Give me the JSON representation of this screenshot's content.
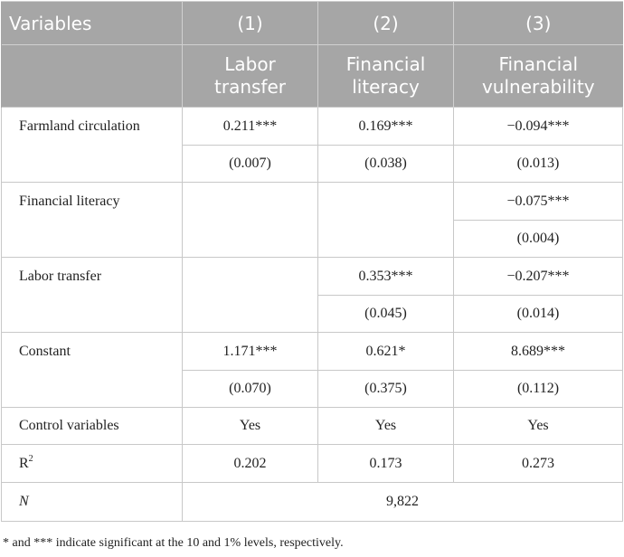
{
  "table": {
    "header_variables": "Variables",
    "columns": [
      {
        "number": "(1)",
        "name_line1": "Labor",
        "name_line2": "transfer"
      },
      {
        "number": "(2)",
        "name_line1": "Financial",
        "name_line2": "literacy"
      },
      {
        "number": "(3)",
        "name_line1": "Financial",
        "name_line2": "vulnerability"
      }
    ],
    "rows": {
      "farmland": {
        "label": "Farmland circulation",
        "c1": "0.211***",
        "c2": "0.169***",
        "c3": "−0.094***",
        "se1": "(0.007)",
        "se2": "(0.038)",
        "se3": "(0.013)"
      },
      "finlit": {
        "label": "Financial literacy",
        "c3": "−0.075***",
        "se3": "(0.004)"
      },
      "labor": {
        "label": "Labor transfer",
        "c2": "0.353***",
        "c3": "−0.207***",
        "se2": "(0.045)",
        "se3": "(0.014)"
      },
      "constant": {
        "label": "Constant",
        "c1": "1.171***",
        "c2": "0.621*",
        "c3": "8.689***",
        "se1": "(0.070)",
        "se2": "(0.375)",
        "se3": "(0.112)"
      },
      "controls": {
        "label": "Control variables",
        "c1": "Yes",
        "c2": "Yes",
        "c3": "Yes"
      },
      "r2": {
        "label_base": "R",
        "label_sup": "2",
        "c1": "0.202",
        "c2": "0.173",
        "c3": "0.273"
      },
      "n": {
        "label": "N",
        "value": "9,822"
      }
    }
  },
  "footnote": "* and *** indicate significant at the 10 and 1% levels, respectively."
}
